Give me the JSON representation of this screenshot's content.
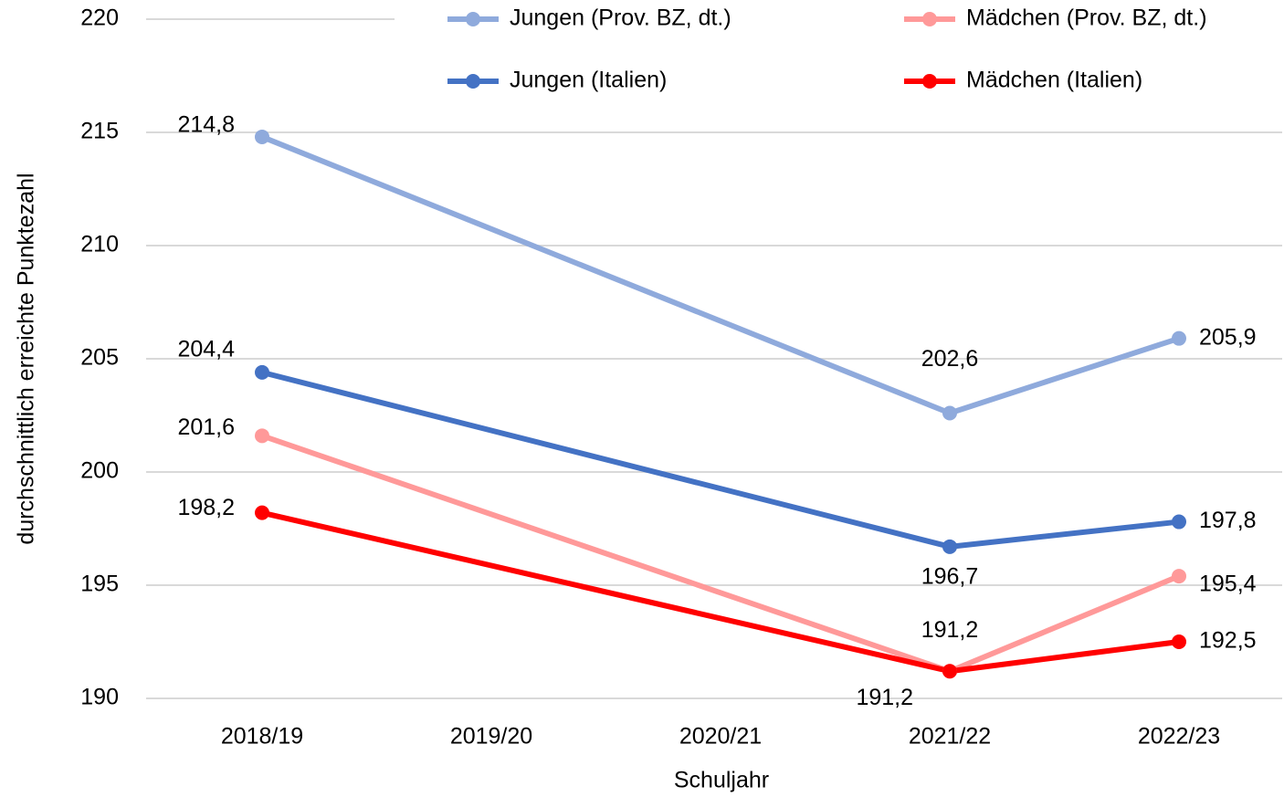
{
  "chart_data": {
    "type": "line",
    "y_axis_label": "durchschnittlich erreichte Punktezahl",
    "x_axis_label": "Schuljahr",
    "categories": [
      "2018/19",
      "2019/20",
      "2020/21",
      "2021/22",
      "2022/23"
    ],
    "series": [
      {
        "name": "Jungen (Prov. BZ, dt.)",
        "color": "#8faadc",
        "values": [
          214.8,
          null,
          null,
          202.6,
          205.9
        ],
        "value_labels": [
          "214,8",
          null,
          null,
          "202,6",
          "205,9"
        ]
      },
      {
        "name": "Mädchen (Prov. BZ, dt.)",
        "color": "#ff9999",
        "values": [
          201.6,
          null,
          null,
          191.2,
          195.4
        ],
        "value_labels": [
          "201,6",
          null,
          null,
          "191,2",
          "195,4"
        ]
      },
      {
        "name": "Jungen (Italien)",
        "color": "#4472c4",
        "values": [
          204.4,
          null,
          null,
          196.7,
          197.8
        ],
        "value_labels": [
          "204,4",
          null,
          null,
          "196,7",
          "197,8"
        ]
      },
      {
        "name": "Mädchen (Italien)",
        "color": "#ff0000",
        "values": [
          198.2,
          null,
          null,
          191.2,
          192.5
        ],
        "value_labels": [
          "198,2",
          null,
          null,
          "191,2",
          "192,5"
        ]
      }
    ],
    "connect_gaps": true,
    "ylim": [
      190,
      220
    ],
    "yticks": [
      190,
      195,
      200,
      205,
      210,
      215,
      220
    ],
    "grid": true
  }
}
